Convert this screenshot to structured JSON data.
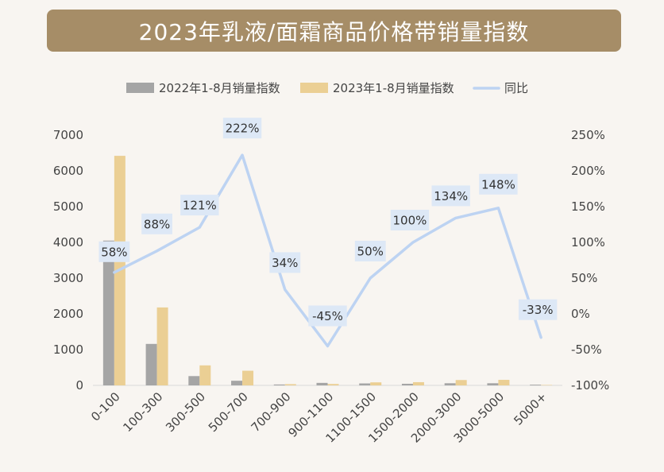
{
  "colors": {
    "title_bg": "#a68d67",
    "background": "#f8f5f1",
    "series_2022": "#a5a5a5",
    "series_2023": "#ebcf94",
    "series_yoy": "#bdd3f2",
    "label_bg": "#dde8f6"
  },
  "chart_data": {
    "type": "bar",
    "title": "2023年乳液/面霜商品价格带销量指数",
    "categories": [
      "0-100",
      "100-300",
      "300-500",
      "500-700",
      "700-900",
      "900-1100",
      "1100-1500",
      "1500-2000",
      "2000-3000",
      "3000-5000",
      "5000+"
    ],
    "series": [
      {
        "name": "2022年1-8月销量指数",
        "type": "bar",
        "axis": "left",
        "values": [
          4050,
          1160,
          260,
          130,
          25,
          70,
          55,
          45,
          60,
          60,
          20
        ]
      },
      {
        "name": "2023年1-8月销量指数",
        "type": "bar",
        "axis": "left",
        "values": [
          6420,
          2180,
          560,
          410,
          35,
          40,
          85,
          90,
          150,
          155,
          12
        ]
      },
      {
        "name": "同比",
        "type": "line",
        "axis": "right",
        "values": [
          58,
          88,
          121,
          222,
          34,
          -45,
          50,
          100,
          134,
          148,
          -33
        ],
        "labels": [
          "58%",
          "88%",
          "121%",
          "222%",
          "34%",
          "-45%",
          "50%",
          "100%",
          "134%",
          "148%",
          "-33%"
        ]
      }
    ],
    "y_left": {
      "min": 0,
      "max": 7000,
      "ticks": [
        "0",
        "1000",
        "2000",
        "3000",
        "4000",
        "5000",
        "6000",
        "7000"
      ]
    },
    "y_right": {
      "min": -100,
      "max": 250,
      "ticks": [
        "-100%",
        "-50%",
        "0%",
        "50%",
        "100%",
        "150%",
        "200%",
        "250%"
      ]
    },
    "legend_position": "top",
    "grid": false
  }
}
